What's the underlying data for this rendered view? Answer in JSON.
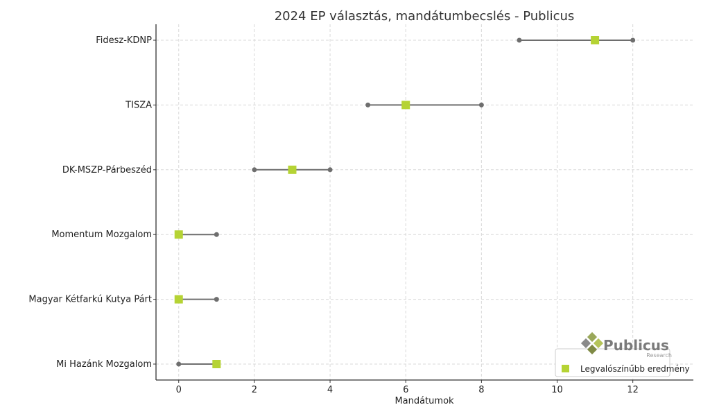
{
  "chart_data": {
    "type": "range-dot",
    "title": "2024 EP választás, mandátumbecslés - Publicus",
    "xlabel": "Mandátumok",
    "ylabel": "",
    "xlim": [
      -0.6,
      13.6
    ],
    "xticks": [
      0,
      2,
      4,
      6,
      8,
      10,
      12
    ],
    "grid": true,
    "categories": [
      "Fidesz-KDNP",
      "TISZA",
      "DK-MSZP-Párbeszéd",
      "Momentum Mozgalom",
      "Magyar Kétfarkú Kutya Párt",
      "Mi Hazánk Mozgalom"
    ],
    "ranges": [
      {
        "min": 9,
        "max": 12
      },
      {
        "min": 5,
        "max": 8
      },
      {
        "min": 2,
        "max": 4
      },
      {
        "min": 0,
        "max": 1
      },
      {
        "min": 0,
        "max": 1
      },
      {
        "min": 0,
        "max": 1
      }
    ],
    "series": [
      {
        "name": "Legvalószínűbb eredmény",
        "values": [
          11,
          6,
          3,
          0,
          0,
          1
        ]
      }
    ],
    "legend_position": "bottom-right",
    "colors": {
      "range": "#6e6e6e",
      "point": "#b5d334"
    }
  },
  "logo": {
    "name": "Publicus",
    "sub": "Research"
  }
}
